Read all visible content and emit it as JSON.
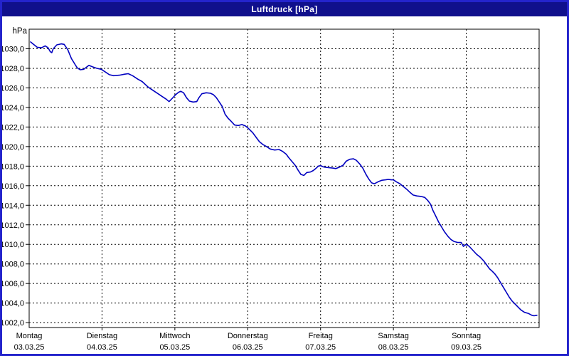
{
  "window": {
    "title": "Luftdruck [hPa]"
  },
  "colors": {
    "titlebar_bg": "#10108c",
    "titlebar_text": "#ffffff",
    "window_border": "#2424cc",
    "plot_background": "#ffffff",
    "grid": "#000000",
    "frame": "#000000",
    "line": "#0000c0",
    "label": "#000000"
  },
  "chart_data": {
    "type": "line",
    "title": "Luftdruck [hPa]",
    "grid": "dashed-black",
    "legend": "none",
    "y_axis": {
      "unit_label": "hPa",
      "min": 1002,
      "max": 1030,
      "step": 2,
      "frame_ylim": [
        1001.5,
        1032
      ],
      "ticks": [
        {
          "v": 1002,
          "label": "1002,0"
        },
        {
          "v": 1004,
          "label": "1004,0"
        },
        {
          "v": 1006,
          "label": "1006,0"
        },
        {
          "v": 1008,
          "label": "1008,0"
        },
        {
          "v": 1010,
          "label": "1010,0"
        },
        {
          "v": 1012,
          "label": "1012,0"
        },
        {
          "v": 1014,
          "label": "1014,0"
        },
        {
          "v": 1016,
          "label": "1016,0"
        },
        {
          "v": 1018,
          "label": "1018,0"
        },
        {
          "v": 1020,
          "label": "1020,0"
        },
        {
          "v": 1022,
          "label": "1022,0"
        },
        {
          "v": 1024,
          "label": "1024,0"
        },
        {
          "v": 1026,
          "label": "1026,0"
        },
        {
          "v": 1028,
          "label": "1028,0"
        },
        {
          "v": 1030,
          "label": "1030,0"
        }
      ]
    },
    "x_axis": {
      "span_days": 7,
      "days": [
        {
          "name": "Montag",
          "date": "03.03.25"
        },
        {
          "name": "Dienstag",
          "date": "04.03.25"
        },
        {
          "name": "Mittwoch",
          "date": "05.03.25"
        },
        {
          "name": "Donnerstag",
          "date": "06.03.25"
        },
        {
          "name": "Freitag",
          "date": "07.03.25"
        },
        {
          "name": "Samstag",
          "date": "08.03.25"
        },
        {
          "name": "Sonntag",
          "date": "09.03.25"
        }
      ]
    },
    "series": [
      {
        "name": "Luftdruck",
        "unit": "hPa",
        "color": "#0000c0",
        "points": [
          [
            0.02,
            1030.7
          ],
          [
            0.06,
            1030.45
          ],
          [
            0.11,
            1030.15
          ],
          [
            0.17,
            1030.1
          ],
          [
            0.22,
            1030.3
          ],
          [
            0.26,
            1030.1
          ],
          [
            0.29,
            1029.7
          ],
          [
            0.31,
            1029.6
          ],
          [
            0.33,
            1030.0
          ],
          [
            0.38,
            1030.4
          ],
          [
            0.44,
            1030.5
          ],
          [
            0.48,
            1030.45
          ],
          [
            0.53,
            1029.9
          ],
          [
            0.58,
            1029.0
          ],
          [
            0.63,
            1028.4
          ],
          [
            0.66,
            1028.05
          ],
          [
            0.7,
            1027.85
          ],
          [
            0.75,
            1027.9
          ],
          [
            0.82,
            1028.3
          ],
          [
            0.87,
            1028.15
          ],
          [
            0.93,
            1028.0
          ],
          [
            0.99,
            1027.9
          ],
          [
            1.05,
            1027.6
          ],
          [
            1.1,
            1027.35
          ],
          [
            1.16,
            1027.25
          ],
          [
            1.24,
            1027.3
          ],
          [
            1.31,
            1027.4
          ],
          [
            1.36,
            1027.45
          ],
          [
            1.42,
            1027.25
          ],
          [
            1.49,
            1026.9
          ],
          [
            1.55,
            1026.65
          ],
          [
            1.63,
            1026.1
          ],
          [
            1.7,
            1025.75
          ],
          [
            1.77,
            1025.4
          ],
          [
            1.83,
            1025.1
          ],
          [
            1.88,
            1024.85
          ],
          [
            1.92,
            1024.6
          ],
          [
            1.96,
            1024.9
          ],
          [
            2.01,
            1025.3
          ],
          [
            2.05,
            1025.55
          ],
          [
            2.08,
            1025.65
          ],
          [
            2.12,
            1025.5
          ],
          [
            2.16,
            1025.0
          ],
          [
            2.2,
            1024.65
          ],
          [
            2.25,
            1024.55
          ],
          [
            2.3,
            1024.6
          ],
          [
            2.33,
            1025.0
          ],
          [
            2.37,
            1025.4
          ],
          [
            2.43,
            1025.5
          ],
          [
            2.49,
            1025.45
          ],
          [
            2.53,
            1025.3
          ],
          [
            2.57,
            1025.0
          ],
          [
            2.61,
            1024.55
          ],
          [
            2.65,
            1024.1
          ],
          [
            2.69,
            1023.3
          ],
          [
            2.73,
            1022.9
          ],
          [
            2.77,
            1022.6
          ],
          [
            2.82,
            1022.2
          ],
          [
            2.87,
            1022.15
          ],
          [
            2.92,
            1022.25
          ],
          [
            2.97,
            1022.1
          ],
          [
            3.01,
            1021.85
          ],
          [
            3.07,
            1021.4
          ],
          [
            3.12,
            1020.9
          ],
          [
            3.16,
            1020.5
          ],
          [
            3.21,
            1020.2
          ],
          [
            3.26,
            1020.0
          ],
          [
            3.31,
            1019.75
          ],
          [
            3.37,
            1019.65
          ],
          [
            3.43,
            1019.7
          ],
          [
            3.48,
            1019.5
          ],
          [
            3.53,
            1019.2
          ],
          [
            3.56,
            1018.9
          ],
          [
            3.61,
            1018.45
          ],
          [
            3.65,
            1018.1
          ],
          [
            3.69,
            1017.6
          ],
          [
            3.73,
            1017.15
          ],
          [
            3.77,
            1017.05
          ],
          [
            3.81,
            1017.35
          ],
          [
            3.86,
            1017.4
          ],
          [
            3.9,
            1017.55
          ],
          [
            3.94,
            1017.8
          ],
          [
            3.97,
            1018.0
          ],
          [
            4.0,
            1018.05
          ],
          [
            4.05,
            1017.9
          ],
          [
            4.11,
            1017.85
          ],
          [
            4.17,
            1017.8
          ],
          [
            4.21,
            1017.75
          ],
          [
            4.26,
            1017.9
          ],
          [
            4.31,
            1018.1
          ],
          [
            4.35,
            1018.5
          ],
          [
            4.4,
            1018.7
          ],
          [
            4.45,
            1018.75
          ],
          [
            4.49,
            1018.6
          ],
          [
            4.54,
            1018.2
          ],
          [
            4.58,
            1017.8
          ],
          [
            4.62,
            1017.2
          ],
          [
            4.66,
            1016.7
          ],
          [
            4.7,
            1016.3
          ],
          [
            4.74,
            1016.2
          ],
          [
            4.79,
            1016.4
          ],
          [
            4.84,
            1016.55
          ],
          [
            4.89,
            1016.6
          ],
          [
            4.93,
            1016.65
          ],
          [
            4.97,
            1016.6
          ],
          [
            5.0,
            1016.6
          ],
          [
            5.05,
            1016.35
          ],
          [
            5.09,
            1016.2
          ],
          [
            5.13,
            1015.95
          ],
          [
            5.18,
            1015.65
          ],
          [
            5.23,
            1015.3
          ],
          [
            5.27,
            1015.05
          ],
          [
            5.32,
            1014.95
          ],
          [
            5.38,
            1014.9
          ],
          [
            5.43,
            1014.8
          ],
          [
            5.47,
            1014.5
          ],
          [
            5.51,
            1014.1
          ],
          [
            5.54,
            1013.5
          ],
          [
            5.58,
            1012.9
          ],
          [
            5.62,
            1012.3
          ],
          [
            5.66,
            1011.8
          ],
          [
            5.7,
            1011.3
          ],
          [
            5.75,
            1010.8
          ],
          [
            5.79,
            1010.5
          ],
          [
            5.83,
            1010.3
          ],
          [
            5.88,
            1010.2
          ],
          [
            5.93,
            1010.2
          ],
          [
            5.96,
            1009.8
          ],
          [
            6.0,
            1010.0
          ],
          [
            6.04,
            1009.8
          ],
          [
            6.09,
            1009.4
          ],
          [
            6.14,
            1009.0
          ],
          [
            6.19,
            1008.7
          ],
          [
            6.24,
            1008.3
          ],
          [
            6.28,
            1007.9
          ],
          [
            6.32,
            1007.5
          ],
          [
            6.35,
            1007.3
          ],
          [
            6.39,
            1007.0
          ],
          [
            6.43,
            1006.6
          ],
          [
            6.47,
            1006.1
          ],
          [
            6.51,
            1005.6
          ],
          [
            6.55,
            1005.1
          ],
          [
            6.59,
            1004.6
          ],
          [
            6.63,
            1004.2
          ],
          [
            6.67,
            1003.9
          ],
          [
            6.71,
            1003.6
          ],
          [
            6.75,
            1003.3
          ],
          [
            6.8,
            1003.05
          ],
          [
            6.85,
            1002.95
          ],
          [
            6.9,
            1002.75
          ],
          [
            6.93,
            1002.7
          ],
          [
            6.97,
            1002.75
          ]
        ]
      }
    ]
  }
}
